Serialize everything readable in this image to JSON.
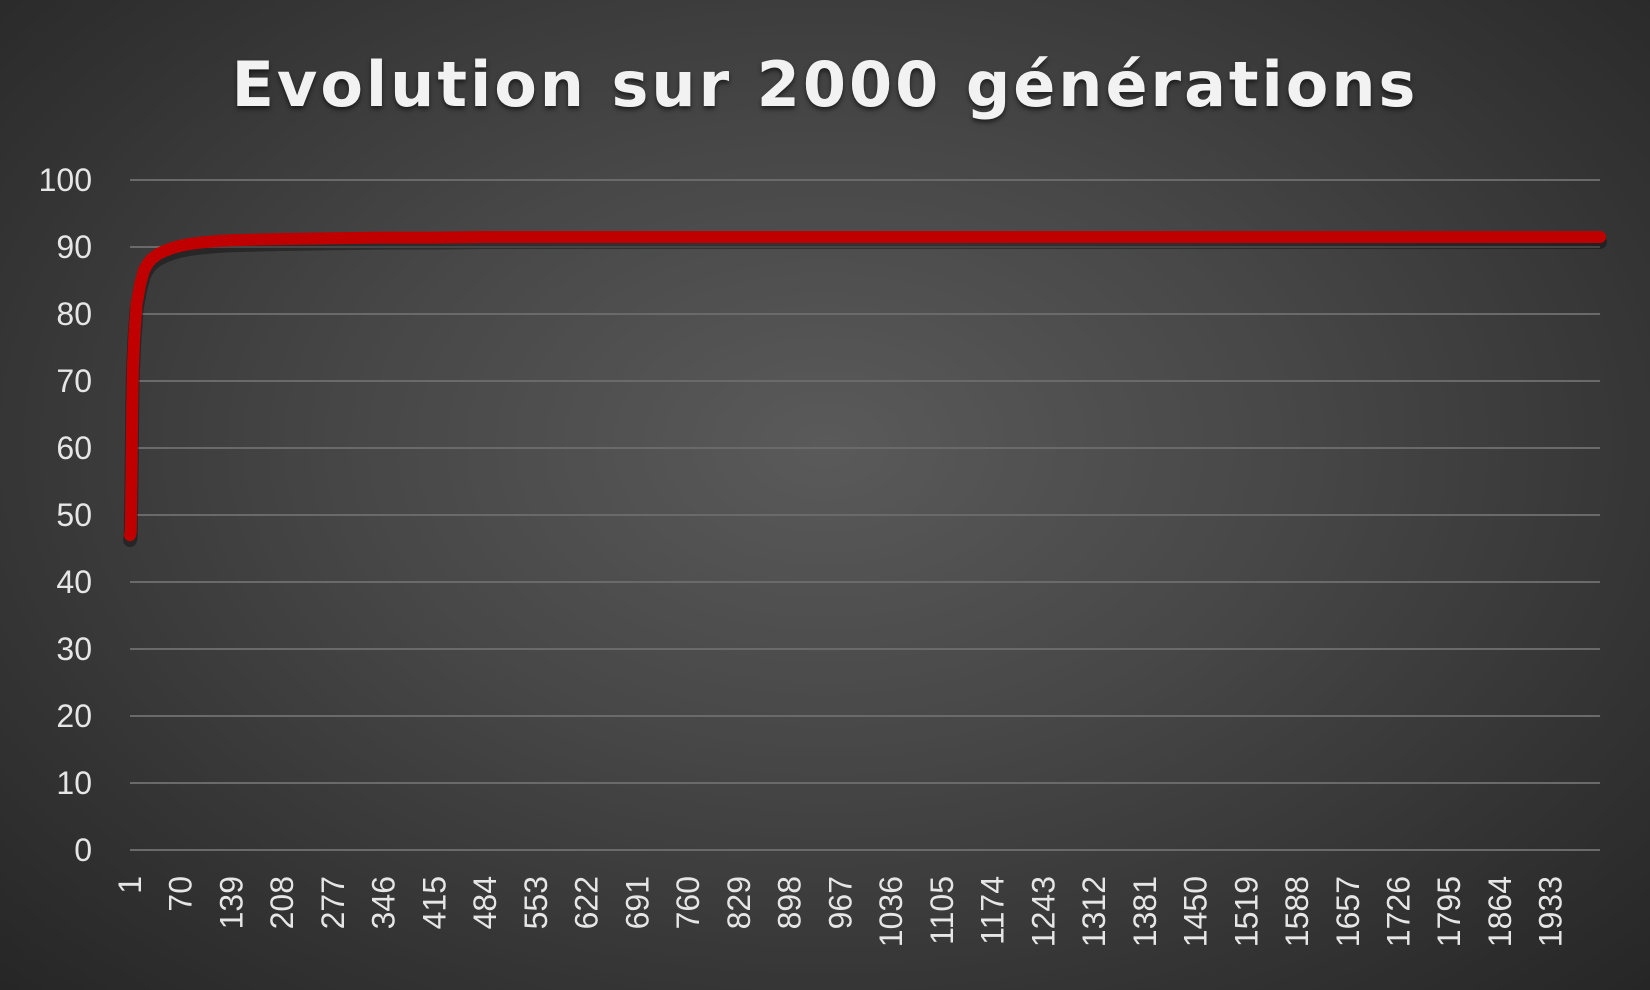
{
  "chart_data": {
    "type": "line",
    "title": "Evolution sur 2000 générations",
    "xlabel": "",
    "ylabel": "",
    "ylim": [
      0,
      100
    ],
    "xlim": [
      1,
      2000
    ],
    "grid": true,
    "legend": "none",
    "y_ticks": [
      "0",
      "10",
      "20",
      "30",
      "40",
      "50",
      "60",
      "70",
      "80",
      "90",
      "100"
    ],
    "x_ticks": [
      "1",
      "70",
      "139",
      "208",
      "277",
      "346",
      "415",
      "484",
      "553",
      "622",
      "691",
      "760",
      "829",
      "898",
      "967",
      "1036",
      "1105",
      "1174",
      "1243",
      "1312",
      "1381",
      "1450",
      "1519",
      "1588",
      "1657",
      "1726",
      "1795",
      "1864",
      "1933"
    ],
    "series": [
      {
        "name": "Evolution",
        "color": "#c00000",
        "x": [
          1,
          2,
          3,
          4,
          5,
          7,
          10,
          15,
          20,
          25,
          30,
          40,
          50,
          60,
          70,
          85,
          100,
          120,
          139,
          170,
          208,
          277,
          346,
          415,
          484,
          553,
          622,
          691,
          760,
          829,
          898,
          967,
          1036,
          1105,
          1174,
          1243,
          1312,
          1381,
          1450,
          1519,
          1588,
          1657,
          1726,
          1795,
          1864,
          1933,
          2000
        ],
        "values": [
          47,
          47.5,
          55,
          66,
          72,
          77,
          81.5,
          84.5,
          86.5,
          87.5,
          88.2,
          89,
          89.5,
          89.9,
          90.2,
          90.5,
          90.7,
          90.9,
          91,
          91.1,
          91.2,
          91.3,
          91.4,
          91.4,
          91.5,
          91.5,
          91.5,
          91.5,
          91.5,
          91.5,
          91.5,
          91.5,
          91.5,
          91.5,
          91.5,
          91.5,
          91.5,
          91.5,
          91.5,
          91.5,
          91.5,
          91.5,
          91.5,
          91.5,
          91.5,
          91.5,
          91.5
        ]
      }
    ]
  }
}
